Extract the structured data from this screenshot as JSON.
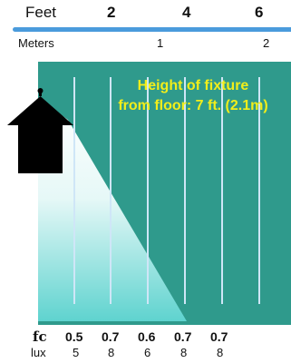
{
  "scale": {
    "feet_label": "Feet",
    "feet_ticks": [
      "2",
      "4",
      "6"
    ],
    "meters_label": "Meters",
    "meter_ticks": [
      "1",
      "2"
    ]
  },
  "diagram": {
    "annotation_line1": "Height of fixture",
    "annotation_line2": "from floor: 7 ft. (2.1m)",
    "floor_color": "#2f9a8c",
    "light_color": "#5fd3cf",
    "measurement_line_count": 6
  },
  "readings": {
    "fc_label": "fc",
    "lux_label": "lux",
    "fc_values": [
      "0.5",
      "0.7",
      "0.6",
      "0.7",
      "0.7"
    ],
    "lux_values": [
      "5",
      "8",
      "6",
      "8",
      "8"
    ]
  }
}
